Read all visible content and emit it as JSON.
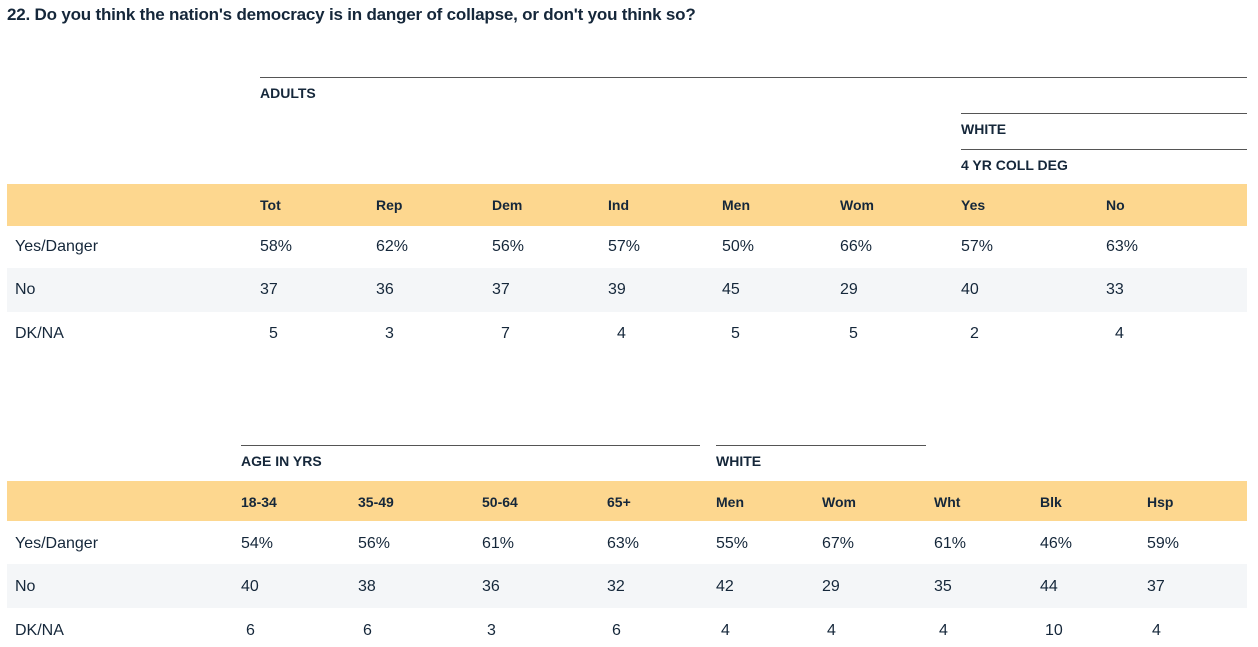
{
  "title": "22. Do you think the nation's democracy is in danger of collapse, or don't you think so?",
  "table1": {
    "group_adults": "ADULTS",
    "group_white": "WHITE",
    "group_coll": "4 YR COLL DEG",
    "columns": [
      "Tot",
      "Rep",
      "Dem",
      "Ind",
      "Men",
      "Wom",
      "Yes",
      "No"
    ],
    "rows": [
      {
        "label": "Yes/Danger",
        "values": [
          "58%",
          "62%",
          "56%",
          "57%",
          "50%",
          "66%",
          "57%",
          "63%"
        ]
      },
      {
        "label": "No",
        "values": [
          "37",
          "36",
          "37",
          "39",
          "45",
          "29",
          "40",
          "33"
        ]
      },
      {
        "label": "DK/NA",
        "values": [
          "5",
          "3",
          "7",
          "4",
          "5",
          "5",
          "2",
          "4"
        ]
      }
    ]
  },
  "table2": {
    "group_age": "AGE IN YRS",
    "group_white": "WHITE",
    "columns": [
      "18-34",
      "35-49",
      "50-64",
      "65+",
      "Men",
      "Wom",
      "Wht",
      "Blk",
      "Hsp"
    ],
    "rows": [
      {
        "label": "Yes/Danger",
        "values": [
          "54%",
          "56%",
          "61%",
          "63%",
          "55%",
          "67%",
          "61%",
          "46%",
          "59%"
        ]
      },
      {
        "label": "No",
        "values": [
          "40",
          "38",
          "36",
          "32",
          "42",
          "29",
          "35",
          "44",
          "37"
        ]
      },
      {
        "label": "DK/NA",
        "values": [
          "6",
          "6",
          "3",
          "6",
          "4",
          "4",
          "4",
          "10",
          "4"
        ]
      }
    ]
  }
}
